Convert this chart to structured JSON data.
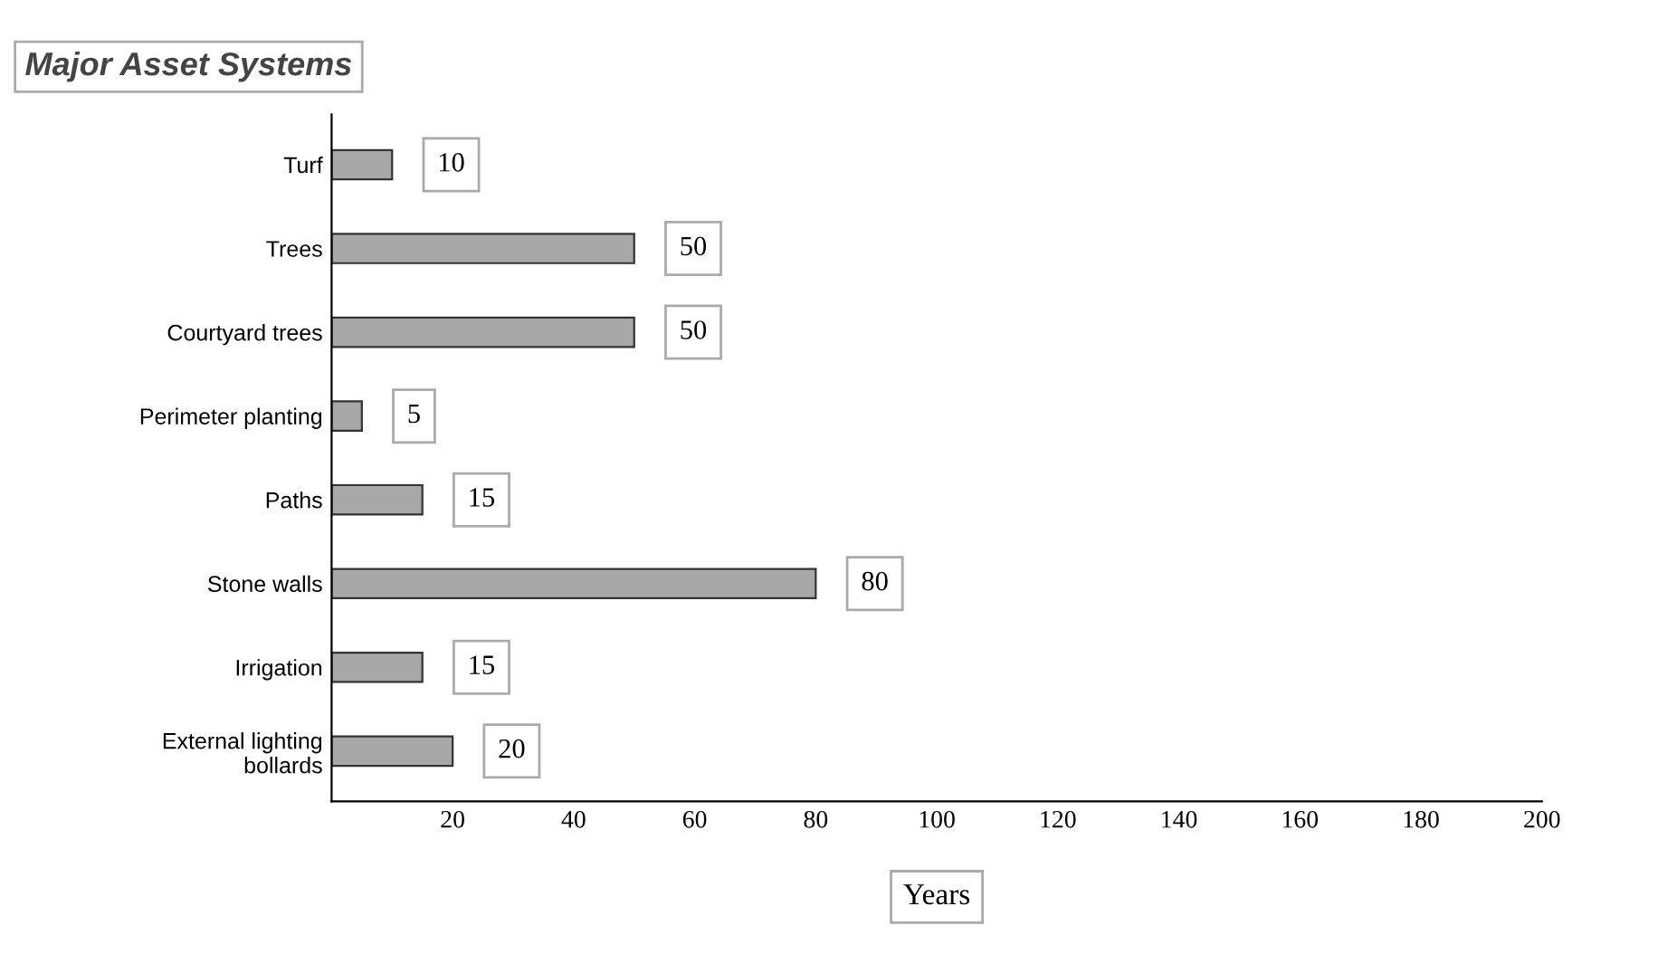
{
  "chart_data": {
    "type": "bar",
    "orientation": "horizontal",
    "title": "Major Asset Systems",
    "xlabel": "Years",
    "categories": [
      "Turf",
      "Trees",
      "Courtyard trees",
      "Perimeter planting",
      "Paths",
      "Stone walls",
      "Irrigation",
      "External lighting\nbollards"
    ],
    "values": [
      10,
      50,
      50,
      5,
      15,
      80,
      15,
      20
    ],
    "color": "#a8a8a8",
    "xlim": [
      0,
      200
    ],
    "xticks": [
      20,
      40,
      60,
      80,
      100,
      120,
      140,
      160,
      180,
      200
    ],
    "data_labels": true,
    "grid": false
  }
}
